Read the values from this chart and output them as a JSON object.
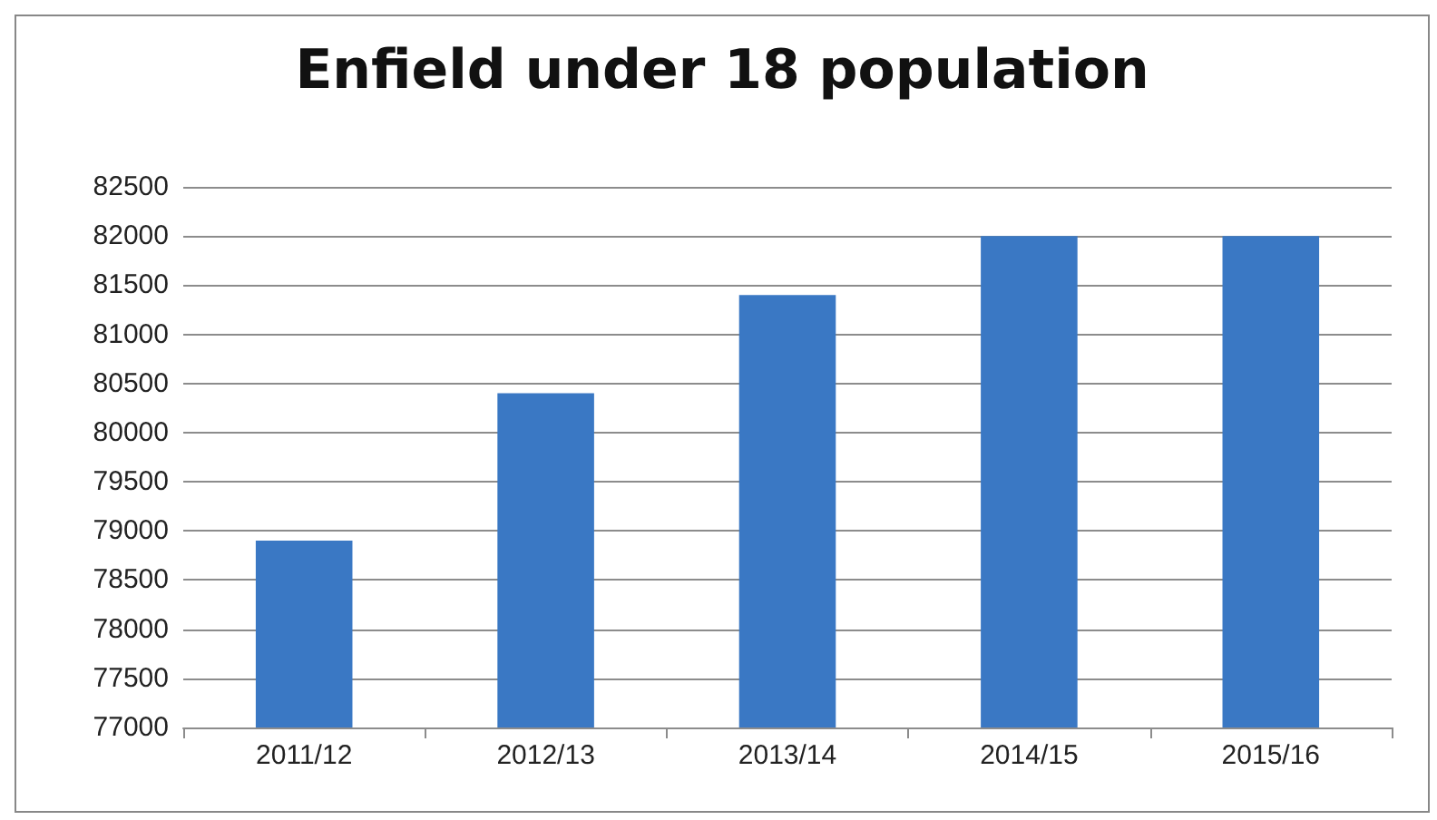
{
  "chart_data": {
    "type": "bar",
    "title": "Enfield under 18 population",
    "categories": [
      "2011/12",
      "2012/13",
      "2013/14",
      "2014/15",
      "2015/16"
    ],
    "values": [
      78900,
      80400,
      81400,
      82000,
      82000
    ],
    "color": "#3a78c4",
    "ylim": [
      77000,
      82500
    ],
    "yticks": [
      77000,
      77500,
      78000,
      78500,
      79000,
      79500,
      80000,
      80500,
      81000,
      81500,
      82000,
      82500
    ],
    "grid": "y"
  }
}
